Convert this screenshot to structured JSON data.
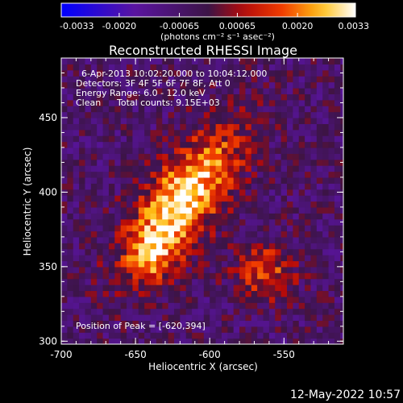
{
  "chart_data": {
    "type": "heatmap",
    "title": "Reconstructed RHESSI Image",
    "xlabel": "Heliocentric X (arcsec)",
    "ylabel": "Heliocentric Y (arcsec)",
    "xlim": [
      -700,
      -510
    ],
    "ylim": [
      298,
      490
    ],
    "x_ticks": [
      "-700",
      "-650",
      "-600",
      "-550"
    ],
    "x_tick_values": [
      -700,
      -650,
      -600,
      -550
    ],
    "y_ticks": [
      "300",
      "350",
      "400",
      "450"
    ],
    "y_tick_values": [
      300,
      350,
      400,
      450
    ],
    "colorbar": {
      "min": -0.0033,
      "max": 0.0033,
      "tick_labels": [
        "-0.0033",
        "-0.0020",
        "-0.00065",
        "0.00065",
        "0.0020",
        "0.0033"
      ],
      "tick_values": [
        -0.0033,
        -0.002,
        -0.00065,
        0.00065,
        0.002,
        0.0033
      ],
      "unit_label": "(photons cm⁻² s⁻¹ asec⁻²)"
    },
    "annotations": {
      "time": "6-Apr-2013 10:02:20.000 to 10:04:12.000",
      "detectors": "Detectors: 3F 4F 5F 6F 7F 8F, Att 0",
      "energy": "Energy Range: 6.0 - 12.0 keV",
      "clean": "Clean",
      "counts": "Total counts: 9.15E+03",
      "peak": "Position of Peak = [-620,394]"
    },
    "peak": [
      -620,
      394
    ]
  },
  "footer": {
    "timestamp": "12-May-2022 10:57"
  }
}
